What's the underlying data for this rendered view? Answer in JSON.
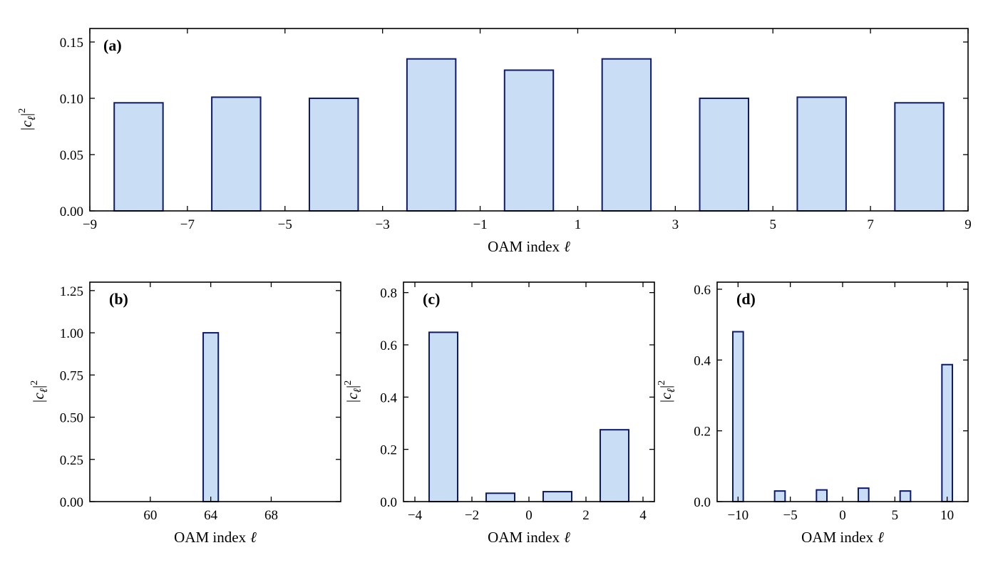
{
  "colors": {
    "bar_fill": "#c9ddf5",
    "bar_edge": "#0d1a6e"
  },
  "chart_data": [
    {
      "id": "a",
      "type": "bar",
      "panel_label": "(a)",
      "xlabel_text": "OAM index",
      "xlabel_symbol": "ℓ",
      "ylabel": {
        "base": "|c",
        "sub": "ℓ",
        "end": "|",
        "sup": "2"
      },
      "xlim": [
        -9,
        9
      ],
      "ylim": [
        0,
        0.162
      ],
      "x": [
        -8,
        -6,
        -4,
        -2,
        0,
        2,
        4,
        6,
        8
      ],
      "values": [
        0.096,
        0.101,
        0.1,
        0.135,
        0.125,
        0.135,
        0.1,
        0.101,
        0.096
      ],
      "bar_width": 1.0,
      "xticks": [
        -9,
        -7,
        -5,
        -3,
        -1,
        1,
        3,
        5,
        7,
        9
      ],
      "xtick_labels": [
        "−9",
        "−7",
        "−5",
        "−3",
        "−1",
        "1",
        "3",
        "5",
        "7",
        "9"
      ],
      "yticks": [
        0,
        0.05,
        0.1,
        0.15
      ],
      "ytick_labels": [
        "0.00",
        "0.05",
        "0.10",
        "0.15"
      ]
    },
    {
      "id": "b",
      "type": "bar",
      "panel_label": "(b)",
      "xlabel_text": "OAM index",
      "xlabel_symbol": "ℓ",
      "ylabel": {
        "base": "|c",
        "sub": "ℓ",
        "end": "|",
        "sup": "2"
      },
      "xlim": [
        56,
        72.6
      ],
      "ylim": [
        0,
        1.3
      ],
      "x": [
        64
      ],
      "values": [
        1.0
      ],
      "bar_width": 1.0,
      "xticks": [
        60,
        64,
        68
      ],
      "xtick_labels": [
        "60",
        "64",
        "68"
      ],
      "yticks": [
        0,
        0.25,
        0.5,
        0.75,
        1.0,
        1.25
      ],
      "ytick_labels": [
        "0.00",
        "0.25",
        "0.50",
        "0.75",
        "1.00",
        "1.25"
      ]
    },
    {
      "id": "c",
      "type": "bar",
      "panel_label": "(c)",
      "xlabel_text": "OAM index",
      "xlabel_symbol": "ℓ",
      "ylabel": {
        "base": "|c",
        "sub": "ℓ",
        "end": "|",
        "sup": "2"
      },
      "xlim": [
        -4.4,
        4.4
      ],
      "ylim": [
        0,
        0.84
      ],
      "x": [
        -3,
        -1,
        1,
        3
      ],
      "values": [
        0.648,
        0.032,
        0.038,
        0.275
      ],
      "bar_width": 1.0,
      "xticks": [
        -4,
        -2,
        0,
        2,
        4
      ],
      "xtick_labels": [
        "−4",
        "−2",
        "0",
        "2",
        "4"
      ],
      "yticks": [
        0,
        0.2,
        0.4,
        0.6,
        0.8
      ],
      "ytick_labels": [
        "0.0",
        "0.2",
        "0.4",
        "0.6",
        "0.8"
      ]
    },
    {
      "id": "d",
      "type": "bar",
      "panel_label": "(d)",
      "xlabel_text": "OAM index",
      "xlabel_symbol": "ℓ",
      "ylabel": {
        "base": "|c",
        "sub": "ℓ",
        "end": "|",
        "sup": "2"
      },
      "xlim": [
        -12,
        12
      ],
      "ylim": [
        0,
        0.62
      ],
      "x": [
        -10,
        -6,
        -2,
        2,
        6,
        10
      ],
      "values": [
        0.48,
        0.03,
        0.033,
        0.038,
        0.03,
        0.387
      ],
      "bar_width": 1.0,
      "xticks": [
        -10,
        -5,
        0,
        5,
        10
      ],
      "xtick_labels": [
        "−10",
        "−5",
        "0",
        "5",
        "10"
      ],
      "yticks": [
        0,
        0.2,
        0.4,
        0.6
      ],
      "ytick_labels": [
        "0.0",
        "0.2",
        "0.4",
        "0.6"
      ]
    }
  ]
}
